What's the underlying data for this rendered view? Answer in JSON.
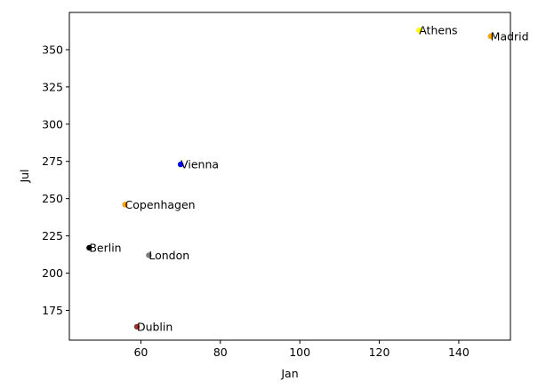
{
  "chart_data": {
    "type": "scatter",
    "title": "",
    "xlabel": "Jan",
    "ylabel": "Jul",
    "xlim": [
      42,
      153
    ],
    "ylim": [
      155,
      375
    ],
    "xticks": [
      60,
      80,
      100,
      120,
      140
    ],
    "yticks": [
      175,
      200,
      225,
      250,
      275,
      300,
      325,
      350
    ],
    "grid": false,
    "points": [
      {
        "label": "Athens",
        "x": 130,
        "y": 363,
        "color": "#ffff00"
      },
      {
        "label": "Madrid",
        "x": 148,
        "y": 359,
        "color": "#ffa500"
      },
      {
        "label": "Vienna",
        "x": 70,
        "y": 273,
        "color": "#0000ff"
      },
      {
        "label": "Copenhagen",
        "x": 56,
        "y": 246,
        "color": "#ffa500"
      },
      {
        "label": "Berlin",
        "x": 47,
        "y": 217,
        "color": "#000000"
      },
      {
        "label": "London",
        "x": 62,
        "y": 212,
        "color": "#808080"
      },
      {
        "label": "Dublin",
        "x": 59,
        "y": 164,
        "color": "#a52a2a"
      }
    ]
  }
}
